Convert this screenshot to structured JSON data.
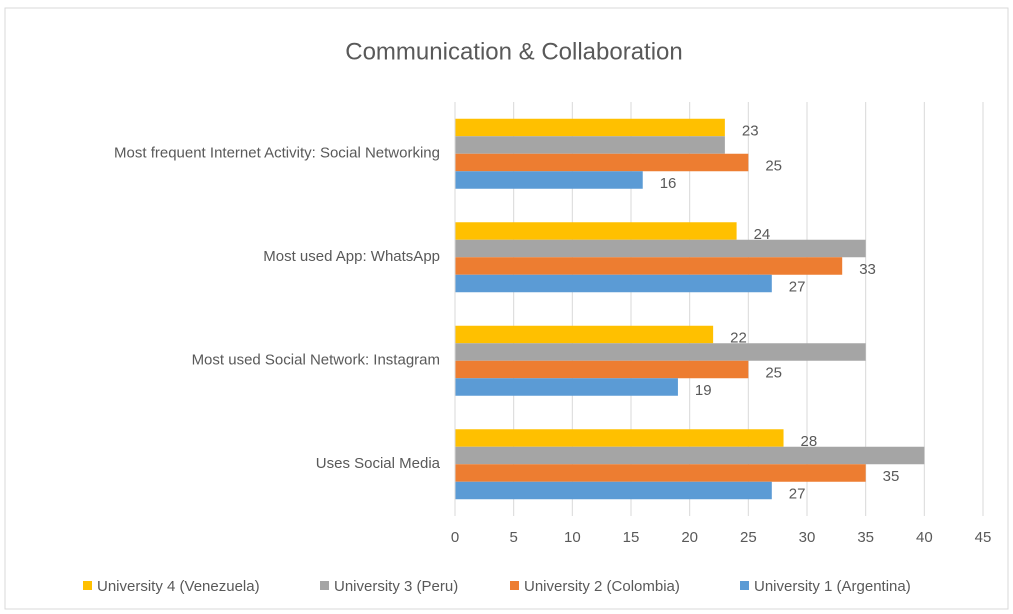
{
  "chart_data": {
    "type": "hbar",
    "title": "Communication & Collaboration",
    "categories": [
      "Most frequent Internet Activity: Social Networking",
      "Most used App: WhatsApp",
      "Most used Social Network: Instagram",
      "Uses Social Media"
    ],
    "series": [
      {
        "name": "University 4 (Venezuela)",
        "color": "#ffc000",
        "values": [
          23,
          24,
          22,
          28
        ],
        "data_labels": true
      },
      {
        "name": "University 3 (Peru)",
        "color": "#a5a5a5",
        "values": [
          23,
          35,
          35,
          40
        ],
        "data_labels": false
      },
      {
        "name": "University 2 (Colombia)",
        "color": "#ed7d31",
        "values": [
          25,
          33,
          25,
          35
        ],
        "data_labels": true
      },
      {
        "name": "University 1 (Argentina)",
        "color": "#5b9bd5",
        "values": [
          16,
          27,
          19,
          27
        ],
        "data_labels": true
      }
    ],
    "xlim": [
      0,
      45
    ],
    "xticks": [
      0,
      5,
      10,
      15,
      20,
      25,
      30,
      35,
      40,
      45
    ],
    "grid": true,
    "legend": "bottom"
  }
}
